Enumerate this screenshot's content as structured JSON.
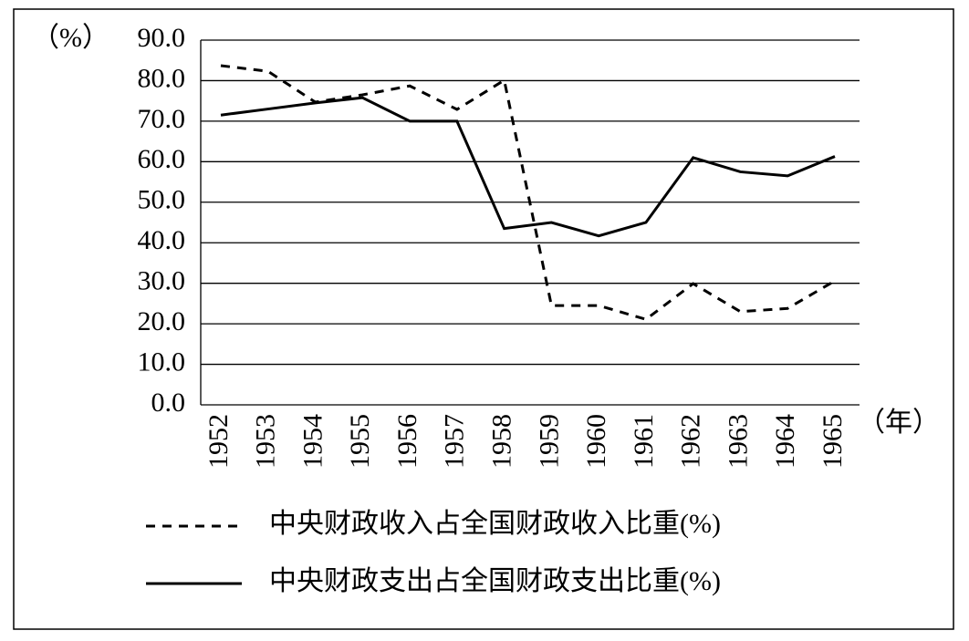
{
  "chart_data": {
    "type": "line",
    "y_label": "（%）",
    "x_label": "（年）",
    "categories": [
      "1952",
      "1953",
      "1954",
      "1955",
      "1956",
      "1957",
      "1958",
      "1959",
      "1960",
      "1961",
      "1962",
      "1963",
      "1964",
      "1965"
    ],
    "series": [
      {
        "name": "中央财政收入占全国财政收入比重(%)",
        "color": "#000",
        "dash": true,
        "values": [
          83.7,
          82.3,
          74.7,
          76.5,
          78.7,
          72.9,
          80.1,
          24.5,
          24.5,
          21.1,
          29.9,
          23.0,
          23.8,
          30.6
        ]
      },
      {
        "name": "中央财政支出占全国财政支出比重(%)",
        "color": "#000",
        "dash": false,
        "values": [
          71.5,
          73.0,
          74.5,
          75.8,
          70.0,
          70.0,
          43.5,
          45.0,
          41.7,
          45.0,
          61.0,
          57.5,
          56.5,
          61.3
        ]
      }
    ],
    "ylim": [
      0,
      90
    ],
    "yticks": [
      {
        "value": 0,
        "label": "0.0"
      },
      {
        "value": 10,
        "label": "10.0"
      },
      {
        "value": 20,
        "label": "20.0"
      },
      {
        "value": 30,
        "label": "30.0"
      },
      {
        "value": 40,
        "label": "40.0"
      },
      {
        "value": 50,
        "label": "50.0"
      },
      {
        "value": 60,
        "label": "60.0"
      },
      {
        "value": 70,
        "label": "70.0"
      },
      {
        "value": 80,
        "label": "80.0"
      },
      {
        "value": 90,
        "label": "90.0"
      }
    ],
    "grid": true
  }
}
